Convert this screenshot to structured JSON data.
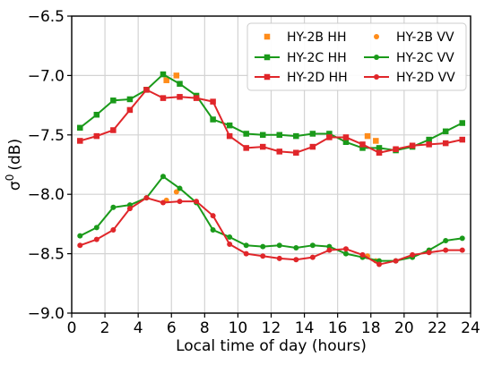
{
  "chart_data": {
    "type": "line",
    "xlabel": "Local time of day (hours)",
    "ylabel_main": "σ",
    "ylabel_sup": "0",
    "ylabel_unit": "(dB)",
    "xlim": [
      0,
      24
    ],
    "ylim": [
      -9.0,
      -6.5
    ],
    "x_ticks": [
      0,
      2,
      4,
      6,
      8,
      10,
      12,
      14,
      16,
      18,
      20,
      22,
      24
    ],
    "x_tick_labels": [
      "0",
      "2",
      "4",
      "6",
      "8",
      "10",
      "12",
      "14",
      "16",
      "18",
      "20",
      "22",
      "24"
    ],
    "y_ticks": [
      -9.0,
      -8.5,
      -8.0,
      -7.5,
      -7.0,
      -6.5
    ],
    "y_tick_labels": [
      "−9.0",
      "−8.5",
      "−8.0",
      "−7.5",
      "−7.0",
      "−6.5"
    ],
    "grid": true,
    "legend_position": "top-right",
    "series": [
      {
        "name": "HY-2B HH",
        "color": "#ff8c1a",
        "marker": "square",
        "line": false,
        "x": [
          5.7,
          6.3,
          17.8,
          18.3
        ],
        "y": [
          -7.04,
          -7.0,
          -7.51,
          -7.55
        ]
      },
      {
        "name": "HY-2B VV",
        "color": "#ff8c1a",
        "marker": "circle",
        "line": false,
        "x": [
          5.7,
          6.3,
          17.8,
          18.3
        ],
        "y": [
          -8.05,
          -7.98,
          -8.52,
          -8.56
        ]
      },
      {
        "name": "HY-2C HH",
        "color": "#1a9a1a",
        "marker": "square",
        "line": true,
        "x": [
          0.5,
          1.5,
          2.5,
          3.5,
          4.5,
          5.5,
          6.5,
          7.5,
          8.5,
          9.5,
          10.5,
          11.5,
          12.5,
          13.5,
          14.5,
          15.5,
          16.5,
          17.5,
          18.5,
          19.5,
          20.5,
          21.5,
          22.5,
          23.5
        ],
        "y": [
          -7.44,
          -7.33,
          -7.21,
          -7.2,
          -7.12,
          -6.99,
          -7.07,
          -7.17,
          -7.37,
          -7.42,
          -7.49,
          -7.5,
          -7.5,
          -7.51,
          -7.49,
          -7.49,
          -7.56,
          -7.61,
          -7.61,
          -7.63,
          -7.6,
          -7.54,
          -7.47,
          -7.4
        ]
      },
      {
        "name": "HY-2C VV",
        "color": "#1a9a1a",
        "marker": "circle",
        "line": true,
        "x": [
          0.5,
          1.5,
          2.5,
          3.5,
          4.5,
          5.5,
          6.5,
          7.5,
          8.5,
          9.5,
          10.5,
          11.5,
          12.5,
          13.5,
          14.5,
          15.5,
          16.5,
          17.5,
          18.5,
          19.5,
          20.5,
          21.5,
          22.5,
          23.5
        ],
        "y": [
          -8.35,
          -8.28,
          -8.11,
          -8.09,
          -8.03,
          -7.85,
          -7.95,
          -8.07,
          -8.3,
          -8.36,
          -8.43,
          -8.44,
          -8.43,
          -8.45,
          -8.43,
          -8.44,
          -8.5,
          -8.53,
          -8.56,
          -8.56,
          -8.53,
          -8.47,
          -8.39,
          -8.37
        ]
      },
      {
        "name": "HY-2D HH",
        "color": "#e0262a",
        "marker": "square",
        "line": true,
        "x": [
          0.5,
          1.5,
          2.5,
          3.5,
          4.5,
          5.5,
          6.5,
          7.5,
          8.5,
          9.5,
          10.5,
          11.5,
          12.5,
          13.5,
          14.5,
          15.5,
          16.5,
          17.5,
          18.5,
          19.5,
          20.5,
          21.5,
          22.5,
          23.5
        ],
        "y": [
          -7.55,
          -7.51,
          -7.46,
          -7.29,
          -7.12,
          -7.19,
          -7.18,
          -7.19,
          -7.22,
          -7.51,
          -7.61,
          -7.6,
          -7.64,
          -7.65,
          -7.6,
          -7.52,
          -7.52,
          -7.58,
          -7.65,
          -7.62,
          -7.59,
          -7.58,
          -7.57,
          -7.54
        ]
      },
      {
        "name": "HY-2D VV",
        "color": "#e0262a",
        "marker": "circle",
        "line": true,
        "x": [
          0.5,
          1.5,
          2.5,
          3.5,
          4.5,
          5.5,
          6.5,
          7.5,
          8.5,
          9.5,
          10.5,
          11.5,
          12.5,
          13.5,
          14.5,
          15.5,
          16.5,
          17.5,
          18.5,
          19.5,
          20.5,
          21.5,
          22.5,
          23.5
        ],
        "y": [
          -8.43,
          -8.38,
          -8.3,
          -8.12,
          -8.03,
          -8.07,
          -8.06,
          -8.06,
          -8.18,
          -8.42,
          -8.5,
          -8.52,
          -8.54,
          -8.55,
          -8.53,
          -8.47,
          -8.46,
          -8.51,
          -8.59,
          -8.56,
          -8.51,
          -8.49,
          -8.47,
          -8.47
        ]
      }
    ]
  }
}
